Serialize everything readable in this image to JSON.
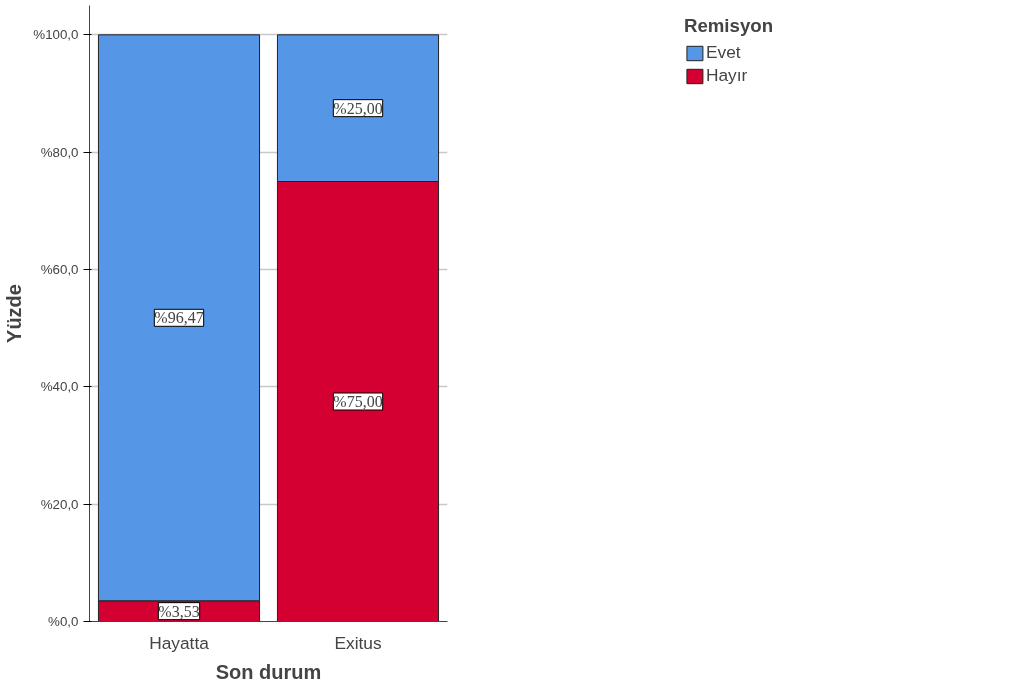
{
  "chart_data": {
    "type": "bar",
    "stacked": true,
    "xlabel": "Son durum",
    "ylabel": "Yüzde",
    "legend_title": "Remisyon",
    "legend": "top right",
    "grid": "y",
    "categories": [
      "Hayatta",
      "Exitus"
    ],
    "series": [
      {
        "name": "Hayır",
        "color": "#d50032",
        "values": [
          3.53,
          75.0
        ],
        "value_labels": [
          "%3,53",
          "%75,00"
        ]
      },
      {
        "name": "Evet",
        "color": "#5596e6",
        "values": [
          96.47,
          25.0
        ],
        "value_labels": [
          "%96,47",
          "%25,00"
        ]
      }
    ],
    "ylim": [
      0,
      105
    ],
    "yticks": [
      {
        "value": 0,
        "label": "%0,0"
      },
      {
        "value": 20,
        "label": "%20,0"
      },
      {
        "value": 40,
        "label": "%40,0"
      },
      {
        "value": 60,
        "label": "%60,0"
      },
      {
        "value": 80,
        "label": "%80,0"
      },
      {
        "value": 100,
        "label": "%100,0"
      }
    ]
  }
}
